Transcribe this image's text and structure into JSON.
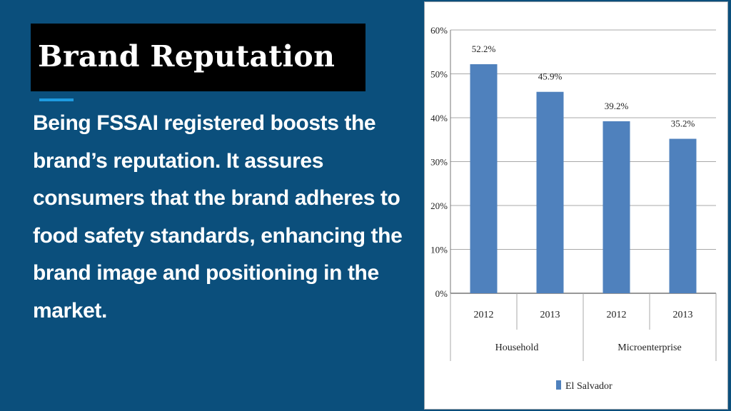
{
  "slide": {
    "title": "Brand Reputation",
    "body": "Being FSSAI registered boosts the brand’s reputation. It assures consumers that the brand adheres to food safety standards, enhancing the brand image and positioning in the market.",
    "colors": {
      "background": "#0b4f7c",
      "title_box": "#000000",
      "accent": "#1e9be0",
      "bar": "#4f81bd"
    }
  },
  "chart_data": {
    "type": "bar",
    "ylim": [
      0,
      60
    ],
    "y_ticks": [
      "0%",
      "10%",
      "20%",
      "30%",
      "40%",
      "50%",
      "60%"
    ],
    "categories": [
      "2012",
      "2013",
      "2012",
      "2013"
    ],
    "groups": [
      {
        "name": "Household",
        "span": [
          0,
          1
        ]
      },
      {
        "name": "Microenterprise",
        "span": [
          2,
          3
        ]
      }
    ],
    "series": [
      {
        "name": "El Salvador",
        "values": [
          52.2,
          45.9,
          39.2,
          35.2
        ],
        "labels": [
          "52.2%",
          "45.9%",
          "39.2%",
          "35.2%"
        ]
      }
    ],
    "grid": true,
    "legend": "bottom"
  }
}
